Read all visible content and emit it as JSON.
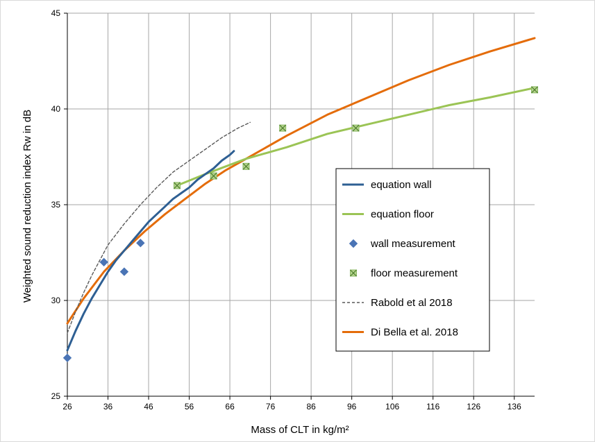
{
  "chart_data": {
    "type": "line",
    "xlabel": "Mass of CLT in kg/m²",
    "ylabel": "Weighted sound reduction index Rw in dB",
    "xlim": [
      26,
      141
    ],
    "ylim": [
      25,
      45
    ],
    "x_ticks": [
      26,
      36,
      46,
      56,
      66,
      76,
      86,
      96,
      106,
      116,
      126,
      136
    ],
    "y_ticks": [
      25,
      30,
      35,
      40,
      45
    ],
    "grid": true,
    "legend_position": "right",
    "series": [
      {
        "name": "equation wall",
        "kind": "line",
        "color": "#2e5f93",
        "x": [
          26,
          28,
          30,
          32,
          34,
          36,
          38,
          40,
          42,
          44,
          46,
          48,
          50,
          52,
          54,
          56,
          58,
          60,
          62,
          64,
          66,
          67
        ],
        "y": [
          27.4,
          28.4,
          29.3,
          30.1,
          30.8,
          31.5,
          32.1,
          32.6,
          33.1,
          33.6,
          34.1,
          34.5,
          34.9,
          35.3,
          35.6,
          35.9,
          36.3,
          36.6,
          36.9,
          37.3,
          37.6,
          37.8
        ]
      },
      {
        "name": "equation floor",
        "kind": "line",
        "color": "#9bc455",
        "x": [
          53,
          60,
          70,
          80,
          90,
          100,
          110,
          120,
          130,
          141
        ],
        "y": [
          36.0,
          36.6,
          37.4,
          38.0,
          38.7,
          39.2,
          39.7,
          40.2,
          40.6,
          41.1
        ]
      },
      {
        "name": "wall measurement",
        "kind": "scatter",
        "marker": "diamond",
        "color": "#4a74b5",
        "x": [
          26,
          35,
          40,
          44
        ],
        "y": [
          27.0,
          32.0,
          31.5,
          33.0
        ]
      },
      {
        "name": "floor measurement",
        "kind": "scatter",
        "marker": "square-x",
        "color": "#89b862",
        "x": [
          53,
          62,
          70,
          79,
          97,
          141
        ],
        "y": [
          36.0,
          36.5,
          37.0,
          39.0,
          39.0,
          41.0
        ]
      },
      {
        "name": "Rabold et al 2018",
        "kind": "line",
        "dashed": true,
        "color": "#595959",
        "x": [
          26,
          28,
          30,
          32,
          34,
          36,
          40,
          44,
          48,
          52,
          56,
          60,
          64,
          68,
          71
        ],
        "y": [
          28.3,
          29.4,
          30.4,
          31.3,
          32.1,
          32.9,
          34.0,
          35.0,
          35.9,
          36.7,
          37.3,
          37.9,
          38.5,
          39.0,
          39.3
        ]
      },
      {
        "name": "Di Bella et al. 2018",
        "kind": "line",
        "color": "#e46c0a",
        "x": [
          26,
          30,
          35,
          40,
          45,
          50,
          55,
          60,
          65,
          70,
          80,
          90,
          100,
          110,
          120,
          130,
          141
        ],
        "y": [
          28.8,
          30.1,
          31.5,
          32.6,
          33.6,
          34.5,
          35.3,
          36.1,
          36.8,
          37.4,
          38.6,
          39.7,
          40.6,
          41.5,
          42.3,
          43.0,
          43.7
        ]
      }
    ]
  }
}
